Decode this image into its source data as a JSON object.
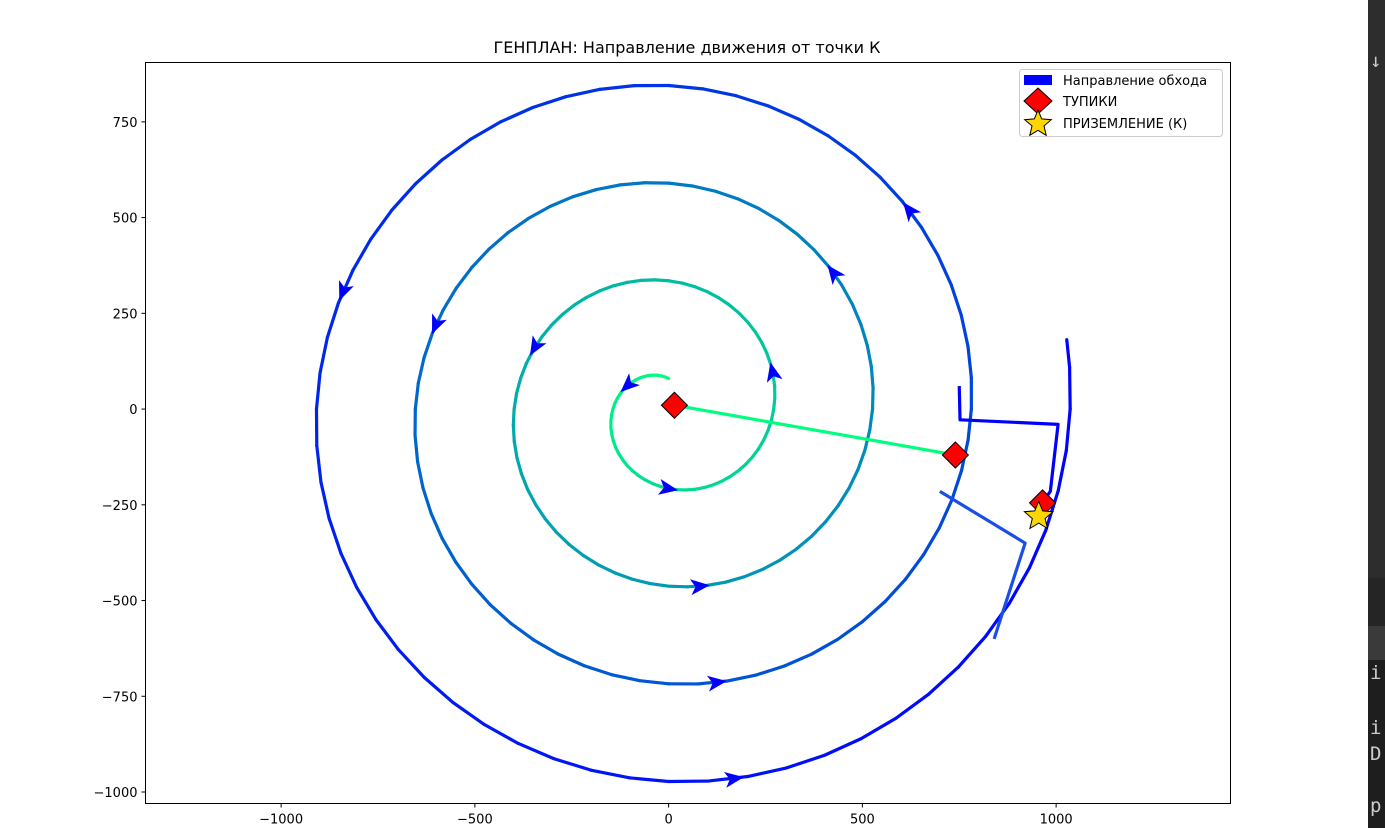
{
  "chart_data": {
    "type": "line",
    "title": "ГЕНПЛАН: Направление движения от точки К",
    "xlim": [
      -1350,
      1450
    ],
    "ylim": [
      -1030,
      905
    ],
    "x_ticks": [
      -1000,
      -500,
      0,
      500,
      1000
    ],
    "x_tick_labels": [
      "−1000",
      "−500",
      "0",
      "500",
      "1000"
    ],
    "y_ticks": [
      750,
      500,
      250,
      0,
      -250,
      -500,
      -750,
      -1000
    ],
    "y_tick_labels": [
      "750",
      "500",
      "250",
      "0",
      "−250",
      "−500",
      "−750",
      "−1000"
    ],
    "grid": false,
    "legend_position": "top-right",
    "legend": [
      {
        "label": "Направление обхода",
        "marker": "rect",
        "color": "#0000ff"
      },
      {
        "label": "ТУПИКИ",
        "marker": "diamond",
        "color": "#ff0000"
      },
      {
        "label": "ПРИЗЕМЛЕНИЕ (К)",
        "marker": "star",
        "color": "#ffd700"
      }
    ],
    "spiral": {
      "center": [
        0,
        0
      ],
      "start_radius": 80,
      "radius_growth_per_turn": 255,
      "start_angle_deg": 90,
      "end_angle_deg": 1450,
      "color_inner": "#00ff80",
      "color_outer": "#0000ff"
    },
    "bridges": [
      {
        "points": [
          [
            15,
            10
          ],
          [
            740,
            -120
          ]
        ],
        "color": "#00ff80"
      },
      {
        "points": [
          [
            750,
            60
          ],
          [
            752,
            -28
          ],
          [
            1005,
            -40
          ],
          [
            985,
            -215
          ],
          [
            965,
            -245
          ]
        ],
        "color": "#0000ff"
      },
      {
        "points": [
          [
            700,
            -215
          ],
          [
            920,
            -350
          ],
          [
            840,
            -600
          ]
        ],
        "color": "#1a4fe6"
      }
    ],
    "arrow_angles_deg": [
      150,
      270,
      380,
      515,
      640,
      760,
      880,
      1000,
      1120,
      1240,
      1360
    ],
    "dead_ends": [
      [
        15,
        10
      ],
      [
        740,
        -120
      ],
      [
        965,
        -245
      ]
    ],
    "landing": [
      955,
      -275
    ],
    "colors": {
      "arrow": "#0000ff",
      "dead_end": "#ff0000",
      "landing": "#ffd700"
    }
  },
  "side_strip": {
    "glyphs": [
      "↓",
      "i",
      "i",
      "D",
      "p"
    ]
  }
}
